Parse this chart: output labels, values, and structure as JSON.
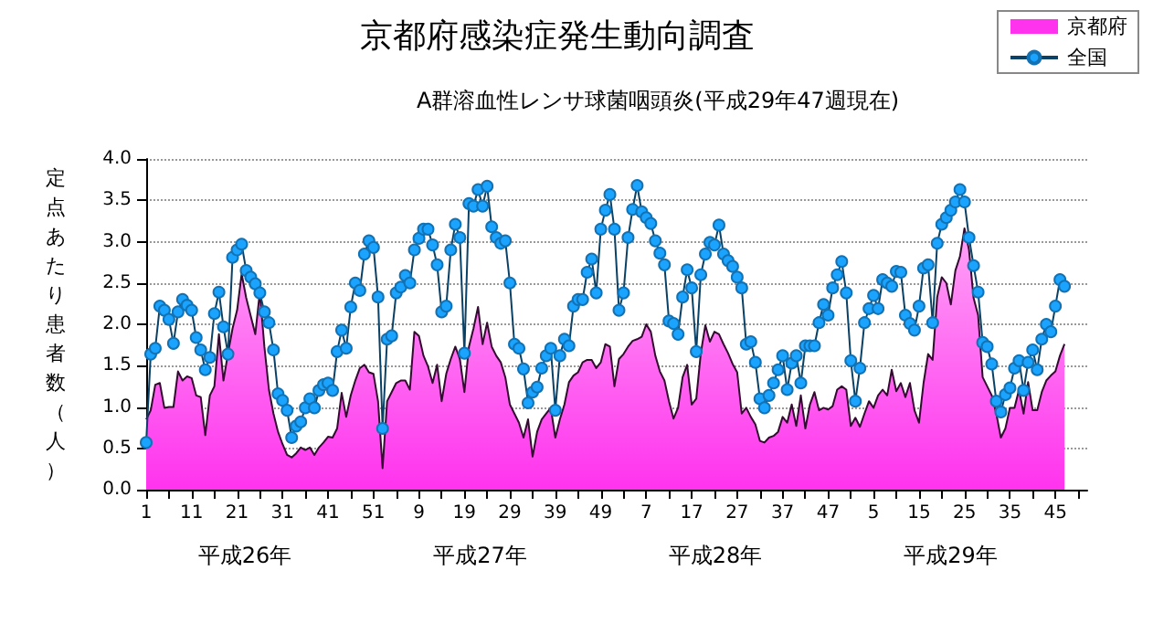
{
  "chart_data": {
    "type": "line",
    "title": "京都府感染症発生動向調査",
    "subtitle": "A群溶血性レンサ球菌咽頭炎(平成29年47週現在)",
    "ylabel": "定点あたり患者数（人）",
    "annotations": [
      "平成26年",
      "平成27年",
      "平成28年",
      "平成29年"
    ],
    "categories": [
      "1",
      null,
      null,
      null,
      null,
      null,
      null,
      null,
      null,
      null,
      "11",
      null,
      null,
      null,
      null,
      null,
      null,
      null,
      null,
      null,
      "21",
      null,
      null,
      null,
      null,
      null,
      null,
      null,
      null,
      null,
      "31",
      null,
      null,
      null,
      null,
      null,
      null,
      null,
      null,
      null,
      "41",
      null,
      null,
      null,
      null,
      null,
      null,
      null,
      null,
      null,
      "51",
      null,
      null,
      null,
      null,
      null,
      null,
      null,
      null,
      null,
      "9",
      null,
      null,
      null,
      null,
      null,
      null,
      null,
      null,
      null,
      "19",
      null,
      null,
      null,
      null,
      null,
      null,
      null,
      null,
      null,
      "29",
      null,
      null,
      null,
      null,
      null,
      null,
      null,
      null,
      null,
      "39",
      null,
      null,
      null,
      null,
      null,
      null,
      null,
      null,
      null,
      "49",
      null,
      null,
      null,
      null,
      null,
      null,
      null,
      null,
      null,
      "7",
      null,
      null,
      null,
      null,
      null,
      null,
      null,
      null,
      null,
      "17",
      null,
      null,
      null,
      null,
      null,
      null,
      null,
      null,
      null,
      "27",
      null,
      null,
      null,
      null,
      null,
      null,
      null,
      null,
      null,
      "37",
      null,
      null,
      null,
      null,
      null,
      null,
      null,
      null,
      null,
      "47",
      null,
      null,
      null,
      null,
      null,
      null,
      null,
      null,
      null,
      "5",
      null,
      null,
      null,
      null,
      null,
      null,
      null,
      null,
      null,
      "15",
      null,
      null,
      null,
      null,
      null,
      null,
      null,
      null,
      null,
      "25",
      null,
      null,
      null,
      null,
      null,
      null,
      null,
      null,
      null,
      "35",
      null,
      null,
      null,
      null,
      null,
      null,
      null,
      null,
      null,
      "45",
      null,
      null,
      null,
      null,
      null,
      null,
      null
    ],
    "series": [
      {
        "name": "京都府",
        "type": "area",
        "color": "#ff33ee",
        "values": [
          0.85,
          0.96,
          1.27,
          1.29,
          0.99,
          1.0,
          1.0,
          1.43,
          1.32,
          1.37,
          1.35,
          1.14,
          1.12,
          0.66,
          1.14,
          1.25,
          1.88,
          1.32,
          1.65,
          1.95,
          2.17,
          2.61,
          2.32,
          2.1,
          1.88,
          2.39,
          1.73,
          1.21,
          0.92,
          0.7,
          0.55,
          0.42,
          0.39,
          0.44,
          0.51,
          0.48,
          0.51,
          0.42,
          0.51,
          0.57,
          0.64,
          0.63,
          0.74,
          1.17,
          0.88,
          1.14,
          1.32,
          1.47,
          1.51,
          1.42,
          1.4,
          1.07,
          0.26,
          1.07,
          1.18,
          1.29,
          1.32,
          1.32,
          1.21,
          1.91,
          1.86,
          1.62,
          1.49,
          1.29,
          1.51,
          1.07,
          1.4,
          1.58,
          1.73,
          1.58,
          1.18,
          1.73,
          1.95,
          2.21,
          1.76,
          2.02,
          1.73,
          1.62,
          1.54,
          1.36,
          1.03,
          0.92,
          0.81,
          0.63,
          0.85,
          0.4,
          0.7,
          0.85,
          0.92,
          0.99,
          0.63,
          0.85,
          1.03,
          1.3,
          1.38,
          1.42,
          1.54,
          1.57,
          1.57,
          1.47,
          1.54,
          1.76,
          1.73,
          1.25,
          1.58,
          1.64,
          1.73,
          1.8,
          1.82,
          1.85,
          2.0,
          1.91,
          1.62,
          1.43,
          1.32,
          1.07,
          0.86,
          0.99,
          1.36,
          1.51,
          1.03,
          1.1,
          1.65,
          1.99,
          1.79,
          1.91,
          1.88,
          1.76,
          1.65,
          1.52,
          1.42,
          0.92,
          0.99,
          0.88,
          0.79,
          0.59,
          0.57,
          0.63,
          0.65,
          0.7,
          0.88,
          0.81,
          1.03,
          0.77,
          1.14,
          0.74,
          1.03,
          1.18,
          0.96,
          0.99,
          0.97,
          1.01,
          1.21,
          1.25,
          1.21,
          0.77,
          0.87,
          0.76,
          0.92,
          1.07,
          0.99,
          1.14,
          1.21,
          1.14,
          1.45,
          1.19,
          1.29,
          1.12,
          1.29,
          0.96,
          0.81,
          1.29,
          1.64,
          1.57,
          2.33,
          2.57,
          2.5,
          2.24,
          2.65,
          2.82,
          3.16,
          2.9,
          2.32,
          2.11,
          1.36,
          1.25,
          1.14,
          0.92,
          0.63,
          0.74,
          0.99,
          0.99,
          1.21,
          0.92,
          1.3,
          0.96,
          0.96,
          1.18,
          1.32,
          1.38,
          1.43,
          1.62,
          1.76,
          null,
          null,
          null,
          null,
          null
        ]
      },
      {
        "name": "全国",
        "type": "line",
        "color": "#1aa3ff",
        "marker": "circle",
        "values": [
          0.57,
          1.64,
          1.71,
          2.22,
          2.17,
          2.06,
          1.77,
          2.15,
          2.3,
          2.23,
          2.17,
          1.84,
          1.69,
          1.45,
          1.6,
          2.13,
          2.39,
          1.97,
          1.64,
          2.81,
          2.9,
          2.97,
          2.65,
          2.57,
          2.49,
          2.38,
          2.15,
          2.02,
          1.69,
          1.16,
          1.08,
          0.96,
          0.63,
          0.77,
          0.82,
          0.99,
          1.1,
          0.99,
          1.2,
          1.27,
          1.29,
          1.2,
          1.67,
          1.93,
          1.71,
          2.21,
          2.5,
          2.41,
          2.85,
          3.01,
          2.93,
          2.33,
          0.74,
          1.82,
          1.86,
          2.38,
          2.45,
          2.59,
          2.5,
          2.9,
          3.04,
          3.15,
          3.15,
          2.96,
          2.72,
          2.15,
          2.22,
          2.9,
          3.21,
          3.05,
          1.65,
          3.46,
          3.43,
          3.63,
          3.43,
          3.67,
          3.18,
          3.05,
          2.98,
          3.01,
          2.5,
          1.76,
          1.71,
          1.46,
          1.05,
          1.18,
          1.24,
          1.47,
          1.62,
          1.71,
          0.96,
          1.62,
          1.82,
          1.74,
          2.22,
          2.3,
          2.3,
          2.63,
          2.79,
          2.38,
          3.15,
          3.38,
          3.57,
          3.15,
          2.17,
          2.38,
          3.05,
          3.39,
          3.68,
          3.36,
          3.29,
          3.22,
          3.01,
          2.86,
          2.72,
          2.04,
          2.01,
          1.88,
          2.33,
          2.66,
          2.44,
          1.67,
          2.6,
          2.85,
          2.99,
          2.96,
          3.2,
          2.85,
          2.77,
          2.7,
          2.57,
          2.44,
          1.76,
          1.79,
          1.54,
          1.1,
          0.99,
          1.14,
          1.29,
          1.45,
          1.62,
          1.21,
          1.53,
          1.62,
          1.29,
          1.74,
          1.74,
          1.74,
          2.02,
          2.24,
          2.11,
          2.44,
          2.6,
          2.76,
          2.38,
          1.56,
          1.07,
          1.47,
          2.02,
          2.19,
          2.35,
          2.19,
          2.54,
          2.5,
          2.46,
          2.64,
          2.63,
          2.11,
          2.01,
          1.93,
          2.22,
          2.68,
          2.72,
          2.02,
          2.98,
          3.21,
          3.29,
          3.38,
          3.48,
          3.63,
          3.48,
          3.05,
          2.71,
          2.39,
          1.78,
          1.73,
          1.52,
          1.07,
          0.94,
          1.15,
          1.23,
          1.47,
          1.56,
          1.2,
          1.54,
          1.69,
          1.45,
          1.82,
          2.0,
          1.91,
          2.22,
          2.54,
          2.46,
          null,
          null,
          null,
          null,
          null
        ]
      }
    ],
    "ylim": [
      0,
      4
    ],
    "yticks": [
      {
        "value": 0,
        "label": "0.0"
      },
      {
        "value": 0.5,
        "label": "0.5"
      },
      {
        "value": 1,
        "label": "1.0"
      },
      {
        "value": 1.5,
        "label": "1.5"
      },
      {
        "value": 2,
        "label": "2.0"
      },
      {
        "value": 2.5,
        "label": "2.5"
      },
      {
        "value": 3,
        "label": "3.0"
      },
      {
        "value": 3.5,
        "label": "3.5"
      },
      {
        "value": 4,
        "label": "4.0"
      }
    ],
    "grid": "y",
    "legend": "top right"
  }
}
